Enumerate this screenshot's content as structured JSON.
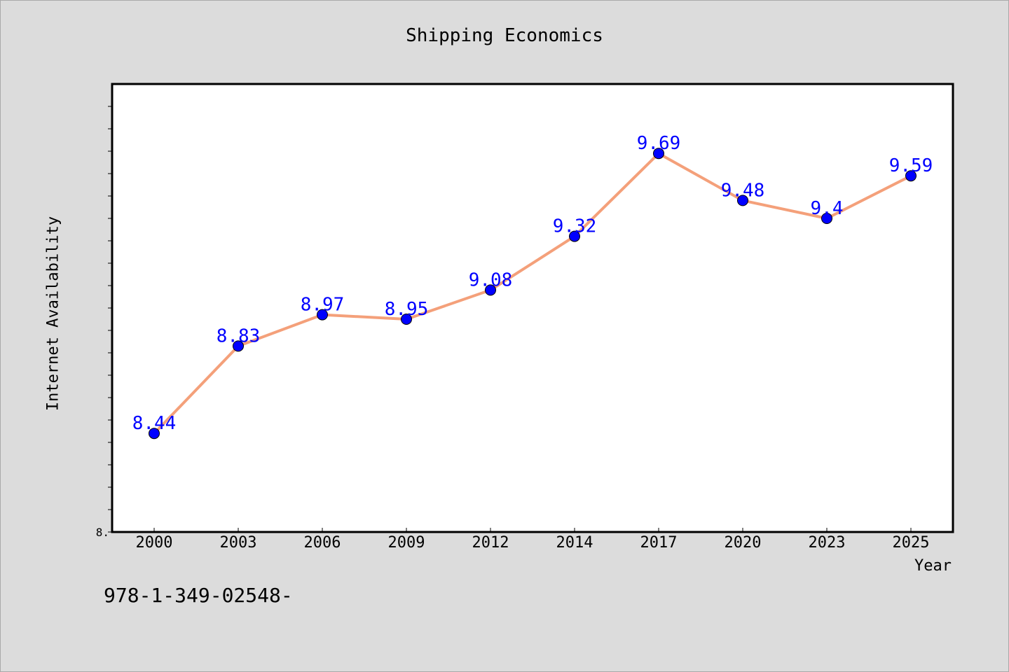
{
  "chart_data": {
    "type": "line",
    "title": "Shipping Economics",
    "xlabel": "Year",
    "ylabel": "Internet Availability",
    "categories": [
      "2000",
      "2003",
      "2006",
      "2009",
      "2012",
      "2014",
      "2017",
      "2020",
      "2023",
      "2025"
    ],
    "series": [
      {
        "values": [
          8.44,
          8.83,
          8.97,
          8.95,
          9.08,
          9.32,
          9.69,
          9.48,
          9.4,
          9.59
        ],
        "data_labels": [
          "8.44",
          "8.83",
          "8.97",
          "8.95",
          "9.08",
          "9.32",
          "9.69",
          "9.48",
          "9.4",
          "9.59"
        ]
      }
    ],
    "ylim": [
      8.0,
      10.0
    ],
    "yticks_labeled": [
      {
        "value": 8.0,
        "label": "8."
      }
    ],
    "grid": false,
    "line_color": "#f4a07a",
    "marker_color": "#0000ff",
    "label_color": "#0000ff",
    "frame_background": "#dcdcdc",
    "plot_background": "#ffffff"
  },
  "footer": {
    "text": "978-1-349-02548-"
  }
}
